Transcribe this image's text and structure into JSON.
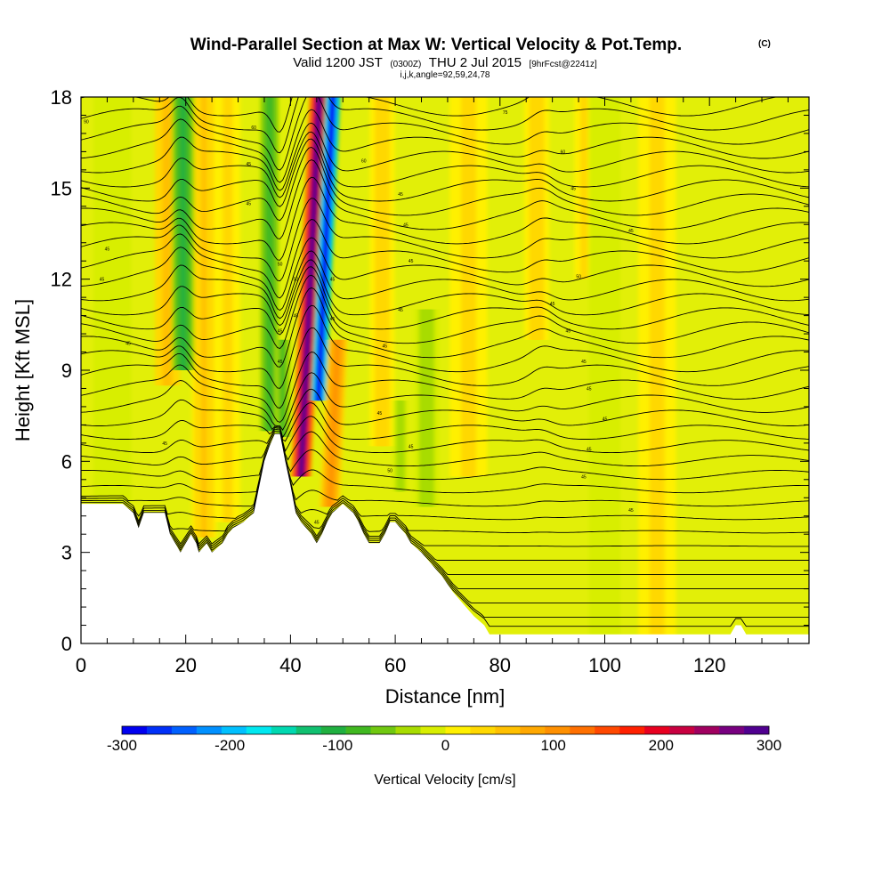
{
  "header": {
    "title": "Wind-Parallel Section at Max W: Vertical Velocity & Pot.Temp.",
    "copyright": "(C)",
    "valid_part1": "Valid 1200 JST",
    "valid_utc": "(0300Z)",
    "valid_part2": "THU 2 Jul 2015",
    "forecast": "[9hrFcst@2241z]",
    "indices": "i,j,k,angle=92,59,24,78"
  },
  "chart_data": {
    "type": "heatmap",
    "xlabel": "Distance [nm]",
    "ylabel": "Height [Kft MSL]",
    "xlim": [
      0,
      139
    ],
    "ylim": [
      0,
      18
    ],
    "x_ticks": [
      0,
      20,
      40,
      60,
      80,
      100,
      120
    ],
    "y_ticks": [
      0,
      3,
      6,
      9,
      12,
      15,
      18
    ],
    "x_tick_labels": [
      "0",
      "20",
      "40",
      "60",
      "80",
      "100",
      "120"
    ],
    "y_tick_labels": [
      "0",
      "3",
      "6",
      "9",
      "12",
      "15",
      "18"
    ],
    "colorbar": {
      "label": "Vertical Velocity [cm/s]",
      "min": -300,
      "max": 300,
      "tick_values": [
        -300,
        -200,
        -100,
        0,
        100,
        200,
        300
      ],
      "tick_labels": [
        "-300",
        "-200",
        "-100",
        "0",
        "100",
        "200",
        "300"
      ],
      "colors": [
        "#0000f0",
        "#0030f8",
        "#0060ff",
        "#0090ff",
        "#00c0ff",
        "#00e8f0",
        "#00d8b0",
        "#10c070",
        "#20b040",
        "#40b820",
        "#70c810",
        "#a8dc00",
        "#d8ee00",
        "#fff000",
        "#ffd800",
        "#ffc000",
        "#ffa800",
        "#ff9000",
        "#ff7000",
        "#ff4800",
        "#ff2000",
        "#e80020",
        "#c80040",
        "#a00060",
        "#780080",
        "#500090"
      ]
    },
    "terrain_profile": [
      [
        0,
        4.6
      ],
      [
        8,
        4.6
      ],
      [
        10,
        4.3
      ],
      [
        11,
        3.8
      ],
      [
        12,
        4.3
      ],
      [
        16,
        4.3
      ],
      [
        17,
        3.6
      ],
      [
        18,
        3.3
      ],
      [
        19,
        3.0
      ],
      [
        20,
        3.3
      ],
      [
        21,
        3.6
      ],
      [
        22,
        3.3
      ],
      [
        22.5,
        3.0
      ],
      [
        24,
        3.3
      ],
      [
        25,
        3.0
      ],
      [
        27,
        3.3
      ],
      [
        28,
        3.6
      ],
      [
        29,
        3.8
      ],
      [
        31,
        4.0
      ],
      [
        33,
        4.3
      ],
      [
        35,
        6.0
      ],
      [
        36,
        6.5
      ],
      [
        37,
        6.9
      ],
      [
        38,
        6.9
      ],
      [
        39,
        6.0
      ],
      [
        40,
        5.2
      ],
      [
        41,
        4.3
      ],
      [
        42,
        4.0
      ],
      [
        43,
        3.8
      ],
      [
        44,
        3.6
      ],
      [
        45,
        3.3
      ],
      [
        46,
        3.6
      ],
      [
        47,
        4.0
      ],
      [
        48,
        4.3
      ],
      [
        50,
        4.6
      ],
      [
        52,
        4.3
      ],
      [
        53,
        4.0
      ],
      [
        54,
        3.6
      ],
      [
        55,
        3.3
      ],
      [
        57,
        3.3
      ],
      [
        58,
        3.6
      ],
      [
        59,
        4.0
      ],
      [
        60,
        4.0
      ],
      [
        61,
        3.8
      ],
      [
        62,
        3.6
      ],
      [
        63,
        3.3
      ],
      [
        65,
        3.0
      ],
      [
        67,
        2.6
      ],
      [
        69,
        2.2
      ],
      [
        71,
        1.7
      ],
      [
        73,
        1.3
      ],
      [
        75,
        0.9
      ],
      [
        77,
        0.6
      ],
      [
        78,
        0.3
      ],
      [
        124,
        0.3
      ],
      [
        125,
        0.6
      ],
      [
        126,
        0.6
      ],
      [
        127,
        0.3
      ],
      [
        139,
        0.3
      ]
    ],
    "updrafts": [
      {
        "x": 16.5,
        "w": 2.0,
        "y0": 8.5,
        "y1": 18,
        "value": 60
      },
      {
        "x": 23.5,
        "w": 2.0,
        "y0": 3.5,
        "y1": 18,
        "value": 50
      },
      {
        "x": 42.0,
        "w": 1.6,
        "y0": 5.5,
        "y1": 18,
        "value": 280
      },
      {
        "x": 47.5,
        "w": 1.6,
        "y0": 4.5,
        "y1": 10,
        "value": 100
      },
      {
        "x": 57.5,
        "w": 2.0,
        "y0": 6.5,
        "y1": 18,
        "value": 40
      },
      {
        "x": 74.0,
        "w": 3.0,
        "y0": 5.5,
        "y1": 18,
        "value": 30
      },
      {
        "x": 87.0,
        "w": 2.0,
        "y0": 10,
        "y1": 18,
        "value": 40
      },
      {
        "x": 96.0,
        "w": 1.5,
        "y0": 12,
        "y1": 18,
        "value": 30
      },
      {
        "x": 110.0,
        "w": 3.0,
        "y0": 0.3,
        "y1": 18,
        "value": 30
      },
      {
        "x": 28.0,
        "w": 2.0,
        "y0": 4.0,
        "y1": 18,
        "value": 30
      }
    ],
    "downdrafts": [
      {
        "x": 19.5,
        "w": 1.8,
        "y0": 9.0,
        "y1": 18,
        "value": -100
      },
      {
        "x": 36.0,
        "w": 1.5,
        "y0": 7.0,
        "y1": 18,
        "value": -90
      },
      {
        "x": 38.5,
        "w": 1.2,
        "y0": 6.8,
        "y1": 10,
        "value": -80
      },
      {
        "x": 45.3,
        "w": 1.2,
        "y0": 8.0,
        "y1": 18,
        "value": -300
      },
      {
        "x": 66.0,
        "w": 2.0,
        "y0": 4.5,
        "y1": 11,
        "value": -40
      },
      {
        "x": 61.0,
        "w": 1.2,
        "y0": 5.0,
        "y1": 8,
        "value": -40
      },
      {
        "x": 6.0,
        "w": 3.0,
        "y0": 4.6,
        "y1": 18,
        "value": -20
      },
      {
        "x": 100.0,
        "w": 2.5,
        "y0": 0.3,
        "y1": 18,
        "value": -20
      }
    ],
    "isentrope_count": 38,
    "contour_labels": [
      {
        "x": 1,
        "y": 17.2,
        "text": "90"
      },
      {
        "x": 33,
        "y": 17.0,
        "text": "60"
      },
      {
        "x": 81,
        "y": 17.5,
        "text": "75"
      },
      {
        "x": 92,
        "y": 16.2,
        "text": "60"
      },
      {
        "x": 54,
        "y": 15.9,
        "text": "60"
      },
      {
        "x": 32,
        "y": 15.8,
        "text": "45"
      },
      {
        "x": 94,
        "y": 15.0,
        "text": "45"
      },
      {
        "x": 61,
        "y": 14.8,
        "text": "45"
      },
      {
        "x": 32,
        "y": 14.5,
        "text": "45"
      },
      {
        "x": 62,
        "y": 13.8,
        "text": "45"
      },
      {
        "x": 105,
        "y": 13.6,
        "text": "45"
      },
      {
        "x": 5,
        "y": 13.0,
        "text": "45"
      },
      {
        "x": 63,
        "y": 12.6,
        "text": "45"
      },
      {
        "x": 38,
        "y": 12.5,
        "text": "50"
      },
      {
        "x": 4,
        "y": 12.0,
        "text": "45"
      },
      {
        "x": 41,
        "y": 12.0,
        "text": "50"
      },
      {
        "x": 48,
        "y": 12.0,
        "text": "45"
      },
      {
        "x": 95,
        "y": 12.1,
        "text": "50"
      },
      {
        "x": 61,
        "y": 11.0,
        "text": "45"
      },
      {
        "x": 90,
        "y": 11.2,
        "text": "45"
      },
      {
        "x": 38,
        "y": 10.3,
        "text": "45"
      },
      {
        "x": 41,
        "y": 10.8,
        "text": "45"
      },
      {
        "x": 48,
        "y": 10.7,
        "text": "45"
      },
      {
        "x": 93,
        "y": 10.3,
        "text": "45"
      },
      {
        "x": 9,
        "y": 9.9,
        "text": "45"
      },
      {
        "x": 58,
        "y": 9.8,
        "text": "45"
      },
      {
        "x": 38,
        "y": 9.3,
        "text": "45"
      },
      {
        "x": 96,
        "y": 9.3,
        "text": "45"
      },
      {
        "x": 97,
        "y": 8.4,
        "text": "45"
      },
      {
        "x": 57,
        "y": 7.6,
        "text": "45"
      },
      {
        "x": 100,
        "y": 7.4,
        "text": "45"
      },
      {
        "x": 16,
        "y": 6.6,
        "text": "45"
      },
      {
        "x": 63,
        "y": 6.5,
        "text": "45"
      },
      {
        "x": 97,
        "y": 6.4,
        "text": "45"
      },
      {
        "x": 59,
        "y": 5.7,
        "text": "50"
      },
      {
        "x": 96,
        "y": 5.5,
        "text": "45"
      },
      {
        "x": 45,
        "y": 4.0,
        "text": "45"
      },
      {
        "x": 105,
        "y": 4.4,
        "text": "45"
      }
    ]
  }
}
